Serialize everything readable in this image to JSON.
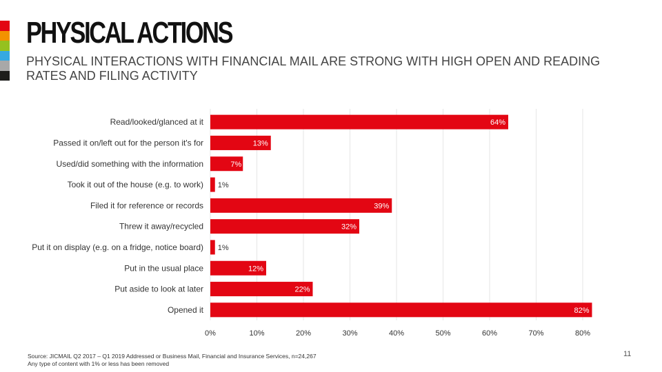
{
  "slide": {
    "title": "PHYSICAL ACTIONS",
    "subtitle": "PHYSICAL INTERACTIONS WITH FINANCIAL MAIL ARE STRONG WITH HIGH OPEN AND READING RATES AND FILING ACTIVITY",
    "source_line1": "Source: JICMAIL Q2 2017 – Q1 2019 Addressed or Business Mail, Financial and Insurance Services, n=24,267",
    "source_line2": "Any type of content with 1% or less has been removed",
    "page_number": "11",
    "strip_colors": [
      "#e30613",
      "#f39200",
      "#95c11f",
      "#36a9e1",
      "#a8a8a8",
      "#1d1d1b"
    ]
  },
  "chart_data": {
    "type": "bar",
    "orientation": "horizontal",
    "categories": [
      "Read/looked/glanced at it",
      "Passed it on/left out for the person it's for",
      "Used/did something with the information",
      "Took it out of the house (e.g. to work)",
      "Filed it for reference or records",
      "Threw it away/recycled",
      "Put it on display (e.g. on a fridge, notice board)",
      "Put in the usual place",
      "Put aside to look at later",
      "Opened it"
    ],
    "values": [
      64,
      13,
      7,
      1,
      39,
      32,
      1,
      12,
      22,
      82
    ],
    "data_labels": [
      "64%",
      "13%",
      "7%",
      "1%",
      "39%",
      "32%",
      "1%",
      "12%",
      "22%",
      "82%"
    ],
    "x_ticks": [
      "0%",
      "10%",
      "20%",
      "30%",
      "40%",
      "50%",
      "60%",
      "70%",
      "80%"
    ],
    "xlim": [
      0,
      82
    ],
    "bar_color": "#e30613",
    "grid": true
  }
}
